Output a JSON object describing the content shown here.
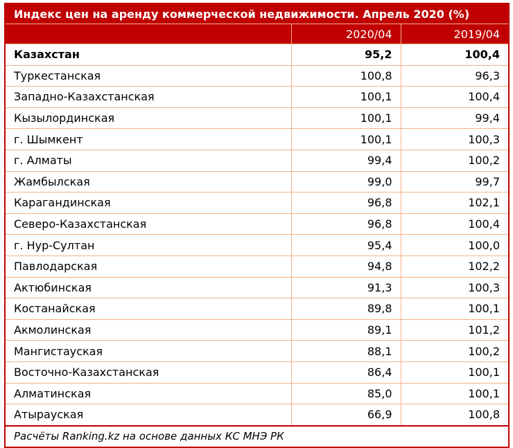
{
  "title": "Индекс цен на аренду коммерческой недвижимости. Апрель 2020 (%)",
  "columns": [
    "",
    "2020/04",
    "2019/04"
  ],
  "rows": [
    {
      "region": "Казахстан",
      "v2020": "95,2",
      "v2019": "100,4",
      "bold": true
    },
    {
      "region": "Туркестанская",
      "v2020": "100,8",
      "v2019": "96,3"
    },
    {
      "region": "Западно-Казахстанская",
      "v2020": "100,1",
      "v2019": "100,4"
    },
    {
      "region": "Кызылординская",
      "v2020": "100,1",
      "v2019": "99,4"
    },
    {
      "region": "г. Шымкент",
      "v2020": "100,1",
      "v2019": "100,3"
    },
    {
      "region": "г. Алматы",
      "v2020": "99,4",
      "v2019": "100,2"
    },
    {
      "region": "Жамбылская",
      "v2020": "99,0",
      "v2019": "99,7"
    },
    {
      "region": "Карагандинская",
      "v2020": "96,8",
      "v2019": "102,1"
    },
    {
      "region": "Северо-Казахстанская",
      "v2020": "96,8",
      "v2019": "100,4"
    },
    {
      "region": "г. Нур-Султан",
      "v2020": "95,4",
      "v2019": "100,0"
    },
    {
      "region": "Павлодарская",
      "v2020": "94,8",
      "v2019": "102,2"
    },
    {
      "region": "Актюбинская",
      "v2020": "91,3",
      "v2019": "100,3"
    },
    {
      "region": "Костанайская",
      "v2020": "89,8",
      "v2019": "100,1"
    },
    {
      "region": "Акмолинская",
      "v2020": "89,1",
      "v2019": "101,2"
    },
    {
      "region": "Мангистауская",
      "v2020": "88,1",
      "v2019": "100,2"
    },
    {
      "region": "Восточно-Казахстанская",
      "v2020": "86,4",
      "v2019": "100,1"
    },
    {
      "region": "Алматинская",
      "v2020": "85,0",
      "v2019": "100,1"
    },
    {
      "region": "Атырауская",
      "v2020": "66,9",
      "v2019": "100,8"
    }
  ],
  "footer": "Расчёты Ranking.kz на основе данных КС МНЭ РК",
  "colors": {
    "header_bg": "#c00000",
    "grid": "#f4b183"
  }
}
